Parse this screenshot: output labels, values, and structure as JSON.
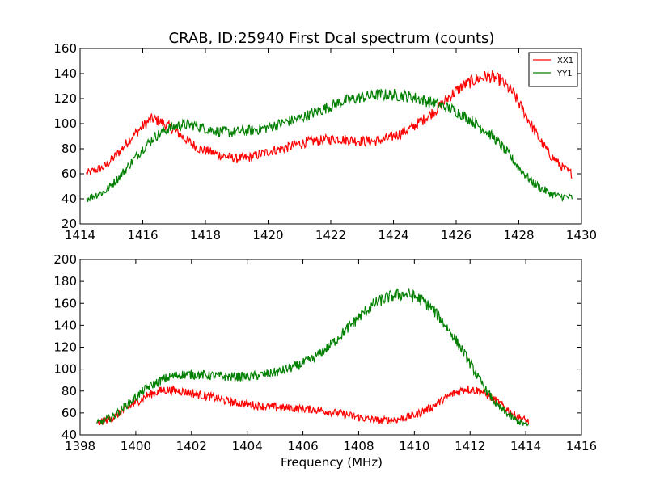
{
  "figure_title": "CRAB, ID:25940 First Dcal spectrum (counts)",
  "xlabel": "Frequency (MHz)",
  "colors": {
    "xx1": "#ff0000",
    "yy1": "#008000",
    "axes": "#000000",
    "background": "#ffffff"
  },
  "chart_data": [
    {
      "type": "line",
      "title": "CRAB, ID:25940 First Dcal spectrum (counts)",
      "xlabel": "",
      "ylabel": "",
      "xlim": [
        1414,
        1430
      ],
      "ylim": [
        20,
        160
      ],
      "xticks": [
        1414,
        1416,
        1418,
        1420,
        1422,
        1424,
        1426,
        1428,
        1430
      ],
      "yticks": [
        20,
        40,
        60,
        80,
        100,
        120,
        140,
        160
      ],
      "grid": false,
      "legend": "top-right",
      "noise": 4,
      "series": [
        {
          "name": "XX1",
          "color": "#ff0000",
          "x": [
            1414.2,
            1414.8,
            1415.2,
            1415.6,
            1416.0,
            1416.3,
            1416.6,
            1417.0,
            1417.4,
            1417.8,
            1418.2,
            1418.6,
            1419.0,
            1419.4,
            1419.8,
            1420.2,
            1420.6,
            1421.0,
            1421.4,
            1421.8,
            1422.2,
            1422.6,
            1423.0,
            1423.4,
            1423.8,
            1424.2,
            1424.6,
            1425.0,
            1425.4,
            1425.8,
            1426.2,
            1426.6,
            1427.0,
            1427.4,
            1427.8,
            1428.2,
            1428.6,
            1429.0,
            1429.4,
            1429.7
          ],
          "values": [
            60,
            66,
            76,
            88,
            98,
            104,
            101,
            95,
            87,
            80,
            77,
            74,
            72,
            73,
            76,
            79,
            81,
            84,
            86,
            87,
            88,
            87,
            86,
            86,
            88,
            92,
            97,
            104,
            112,
            122,
            130,
            135,
            138,
            135,
            125,
            108,
            90,
            75,
            65,
            60
          ]
        },
        {
          "name": "YY1",
          "color": "#008000",
          "x": [
            1414.2,
            1414.8,
            1415.2,
            1415.6,
            1416.0,
            1416.4,
            1416.8,
            1417.2,
            1417.6,
            1418.0,
            1418.4,
            1418.8,
            1419.2,
            1419.6,
            1420.0,
            1420.4,
            1420.8,
            1421.2,
            1421.6,
            1422.0,
            1422.4,
            1422.8,
            1423.2,
            1423.6,
            1424.0,
            1424.4,
            1424.8,
            1425.2,
            1425.6,
            1426.0,
            1426.4,
            1426.8,
            1427.2,
            1427.6,
            1428.0,
            1428.4,
            1428.8,
            1429.2,
            1429.7
          ],
          "values": [
            40,
            46,
            56,
            68,
            80,
            90,
            96,
            99,
            99,
            96,
            94,
            93,
            94,
            95,
            97,
            100,
            103,
            106,
            110,
            114,
            118,
            120,
            122,
            123,
            123,
            122,
            120,
            117,
            114,
            110,
            104,
            97,
            89,
            78,
            65,
            54,
            47,
            42,
            41
          ]
        }
      ]
    },
    {
      "type": "line",
      "title": "",
      "xlabel": "Frequency (MHz)",
      "ylabel": "",
      "xlim": [
        1398,
        1416
      ],
      "ylim": [
        40,
        200
      ],
      "xticks": [
        1398,
        1400,
        1402,
        1404,
        1406,
        1408,
        1410,
        1412,
        1414,
        1416
      ],
      "yticks": [
        40,
        60,
        80,
        100,
        120,
        140,
        160,
        180,
        200
      ],
      "grid": false,
      "legend": "none",
      "noise": 4,
      "series": [
        {
          "name": "",
          "color": "#ff0000",
          "x": [
            1398.6,
            1399.2,
            1399.8,
            1400.4,
            1401.0,
            1401.6,
            1402.2,
            1402.8,
            1403.4,
            1404.0,
            1404.6,
            1405.2,
            1405.8,
            1406.4,
            1407.0,
            1407.6,
            1408.2,
            1408.8,
            1409.4,
            1410.0,
            1410.6,
            1411.2,
            1411.8,
            1412.4,
            1413.0,
            1413.6,
            1414.1
          ],
          "values": [
            50,
            56,
            66,
            76,
            81,
            80,
            77,
            74,
            70,
            68,
            66,
            65,
            64,
            63,
            61,
            58,
            55,
            53,
            54,
            58,
            65,
            75,
            82,
            80,
            70,
            58,
            52
          ]
        },
        {
          "name": "",
          "color": "#008000",
          "x": [
            1398.6,
            1399.2,
            1399.8,
            1400.4,
            1401.0,
            1401.6,
            1402.2,
            1402.8,
            1403.4,
            1404.0,
            1404.6,
            1405.2,
            1405.8,
            1406.4,
            1407.0,
            1407.6,
            1408.2,
            1408.6,
            1409.0,
            1409.4,
            1409.8,
            1410.2,
            1410.6,
            1411.0,
            1411.4,
            1411.8,
            1412.2,
            1412.6,
            1413.0,
            1413.6,
            1414.1
          ],
          "values": [
            50,
            57,
            70,
            83,
            91,
            95,
            95,
            94,
            93,
            93,
            95,
            98,
            103,
            110,
            122,
            137,
            152,
            160,
            165,
            168,
            168,
            164,
            156,
            144,
            130,
            114,
            96,
            80,
            66,
            54,
            48
          ]
        }
      ]
    }
  ]
}
